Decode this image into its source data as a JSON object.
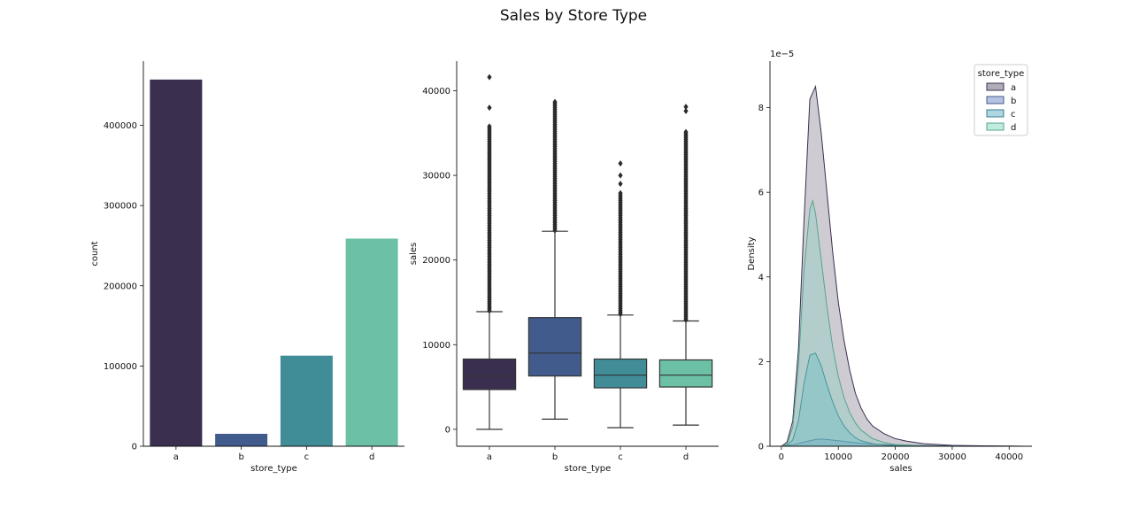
{
  "suptitle": "Sales by Store Type",
  "palette": [
    "#3b2f50",
    "#415b8d",
    "#418d97",
    "#6cc0a6"
  ],
  "chart_data": [
    {
      "type": "bar",
      "categories": [
        "a",
        "b",
        "c",
        "d"
      ],
      "values": [
        457000,
        15500,
        112900,
        258800
      ],
      "xlabel": "store_type",
      "ylabel": "count",
      "ylim": [
        0,
        480000
      ],
      "yticks": [
        0,
        100000,
        200000,
        300000,
        400000
      ],
      "yticklabels": [
        "0",
        "100000",
        "200000",
        "300000",
        "400000"
      ],
      "grid": false
    },
    {
      "type": "box",
      "categories": [
        "a",
        "b",
        "c",
        "d"
      ],
      "boxes": [
        {
          "whislo": 0,
          "q1": 4700,
          "med": 6300,
          "q3": 8300,
          "whishi": 13900,
          "fliers_from": 14000,
          "fliers_to": 35800,
          "extra_fliers": [
            38000,
            41600
          ]
        },
        {
          "whislo": 1200,
          "q1": 6300,
          "med": 9000,
          "q3": 13200,
          "whishi": 23400,
          "fliers_from": 23500,
          "fliers_to": 38800,
          "extra_fliers": []
        },
        {
          "whislo": 200,
          "q1": 4900,
          "med": 6400,
          "q3": 8300,
          "whishi": 13500,
          "fliers_from": 13600,
          "fliers_to": 28000,
          "extra_fliers": [
            29000,
            30000,
            31400
          ]
        },
        {
          "whislo": 500,
          "q1": 5000,
          "med": 6400,
          "q3": 8200,
          "whishi": 12800,
          "fliers_from": 12900,
          "fliers_to": 35300,
          "extra_fliers": [
            37600,
            38100
          ]
        }
      ],
      "xlabel": "store_type",
      "ylabel": "sales",
      "ylim": [
        -2000,
        43500
      ],
      "yticks": [
        0,
        10000,
        20000,
        30000,
        40000
      ],
      "yticklabels": [
        "0",
        "10000",
        "20000",
        "30000",
        "40000"
      ],
      "grid": false
    },
    {
      "type": "area",
      "title": "",
      "xlabel": "sales",
      "ylabel": "Density",
      "offset_text": "1e−5",
      "xlim": [
        -2000,
        44000
      ],
      "ylim": [
        0,
        9.1
      ],
      "xticks": [
        0,
        10000,
        20000,
        30000,
        40000
      ],
      "xticklabels": [
        "0",
        "10000",
        "20000",
        "30000",
        "40000"
      ],
      "yticks": [
        0,
        2,
        4,
        6,
        8
      ],
      "yticklabels": [
        "0",
        "2",
        "4",
        "6",
        "8"
      ],
      "legend_title": "store_type",
      "legend_placement": "top-right",
      "series": [
        {
          "name": "a",
          "x": [
            0,
            1000,
            2000,
            3000,
            4000,
            5000,
            6000,
            7000,
            8000,
            9000,
            10000,
            11000,
            12000,
            13000,
            14000,
            15000,
            16000,
            18000,
            20000,
            22000,
            25000,
            30000,
            35000,
            40000,
            43000
          ],
          "y": [
            0,
            0.1,
            0.6,
            2.3,
            5.4,
            8.2,
            8.5,
            7.4,
            6.0,
            4.6,
            3.4,
            2.5,
            1.8,
            1.25,
            0.9,
            0.65,
            0.48,
            0.3,
            0.18,
            0.12,
            0.06,
            0.02,
            0.01,
            0.005,
            0
          ]
        },
        {
          "name": "b",
          "x": [
            0,
            2000,
            4000,
            6000,
            7000,
            8000,
            10000,
            12000,
            14000,
            16000,
            20000,
            25000,
            30000,
            35000,
            40000
          ],
          "y": [
            0,
            0.03,
            0.1,
            0.16,
            0.17,
            0.16,
            0.13,
            0.1,
            0.07,
            0.05,
            0.03,
            0.015,
            0.007,
            0.003,
            0
          ]
        },
        {
          "name": "c",
          "x": [
            0,
            1000,
            2000,
            3000,
            4000,
            5000,
            6000,
            7000,
            8000,
            9000,
            10000,
            11000,
            12000,
            13000,
            14000,
            16000,
            18000,
            20000,
            25000,
            30000
          ],
          "y": [
            0,
            0.02,
            0.15,
            0.6,
            1.5,
            2.15,
            2.2,
            1.9,
            1.45,
            1.05,
            0.72,
            0.48,
            0.32,
            0.2,
            0.13,
            0.06,
            0.03,
            0.015,
            0.003,
            0
          ]
        },
        {
          "name": "d",
          "x": [
            0,
            1000,
            2000,
            3000,
            4000,
            5000,
            5500,
            6000,
            7000,
            8000,
            9000,
            10000,
            11000,
            12000,
            13000,
            14000,
            16000,
            18000,
            20000,
            25000,
            30000,
            35000
          ],
          "y": [
            0,
            0.05,
            0.45,
            1.9,
            4.2,
            5.6,
            5.8,
            5.5,
            4.4,
            3.3,
            2.35,
            1.65,
            1.15,
            0.8,
            0.55,
            0.38,
            0.18,
            0.09,
            0.04,
            0.01,
            0.003,
            0
          ]
        }
      ],
      "grid": false
    }
  ]
}
